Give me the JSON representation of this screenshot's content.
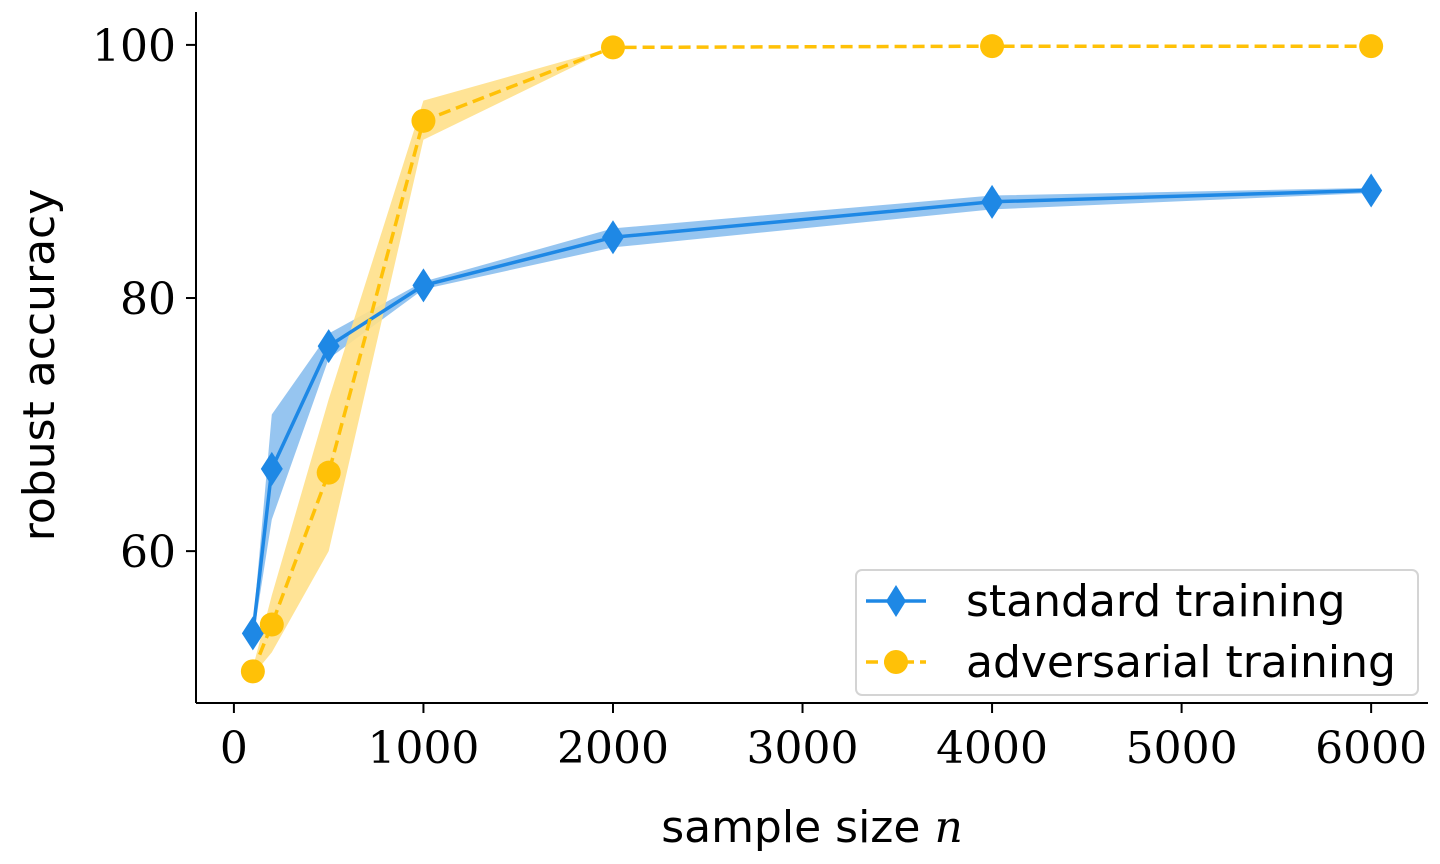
{
  "chart_data": {
    "type": "line",
    "title": "",
    "xlabel": "sample size",
    "xlabel_var": "n",
    "ylabel": "robust accuracy",
    "xlim": [
      -200,
      6300
    ],
    "ylim": [
      48,
      102.6
    ],
    "xticks": [
      0,
      1000,
      2000,
      3000,
      4000,
      5000,
      6000
    ],
    "xtick_labels": [
      "0",
      "1000",
      "2000",
      "3000",
      "4000",
      "5000",
      "6000"
    ],
    "yticks": [
      60,
      80,
      100
    ],
    "ytick_labels": [
      "60",
      "80",
      "100"
    ],
    "grid": false,
    "legend_position": "bottom-right",
    "series": [
      {
        "name": "standard training",
        "color": "#1e88e5",
        "band_color": "#90c2ef",
        "marker": "diamond",
        "line_style": "solid",
        "x": [
          100,
          200,
          500,
          1000,
          2000,
          4000,
          6000
        ],
        "y": [
          53.5,
          66.5,
          76.2,
          81.0,
          84.8,
          87.6,
          88.5
        ],
        "y_lower": [
          53.0,
          62.5,
          75.2,
          80.7,
          84.0,
          87.0,
          88.3
        ],
        "y_upper": [
          54.0,
          70.8,
          77.2,
          81.3,
          85.5,
          88.1,
          88.7
        ]
      },
      {
        "name": "adversarial training",
        "color": "#ffc107",
        "band_color": "#ffe08a",
        "marker": "circle",
        "line_style": "dashed",
        "x": [
          100,
          200,
          500,
          1000,
          2000,
          4000,
          6000
        ],
        "y": [
          50.5,
          54.2,
          66.2,
          94.0,
          99.8,
          99.9,
          99.9
        ],
        "y_lower": [
          50.2,
          52.0,
          60.0,
          92.5,
          99.8,
          99.9,
          99.9
        ],
        "y_upper": [
          50.8,
          56.5,
          72.0,
          95.6,
          99.8,
          99.9,
          99.9
        ]
      }
    ]
  }
}
